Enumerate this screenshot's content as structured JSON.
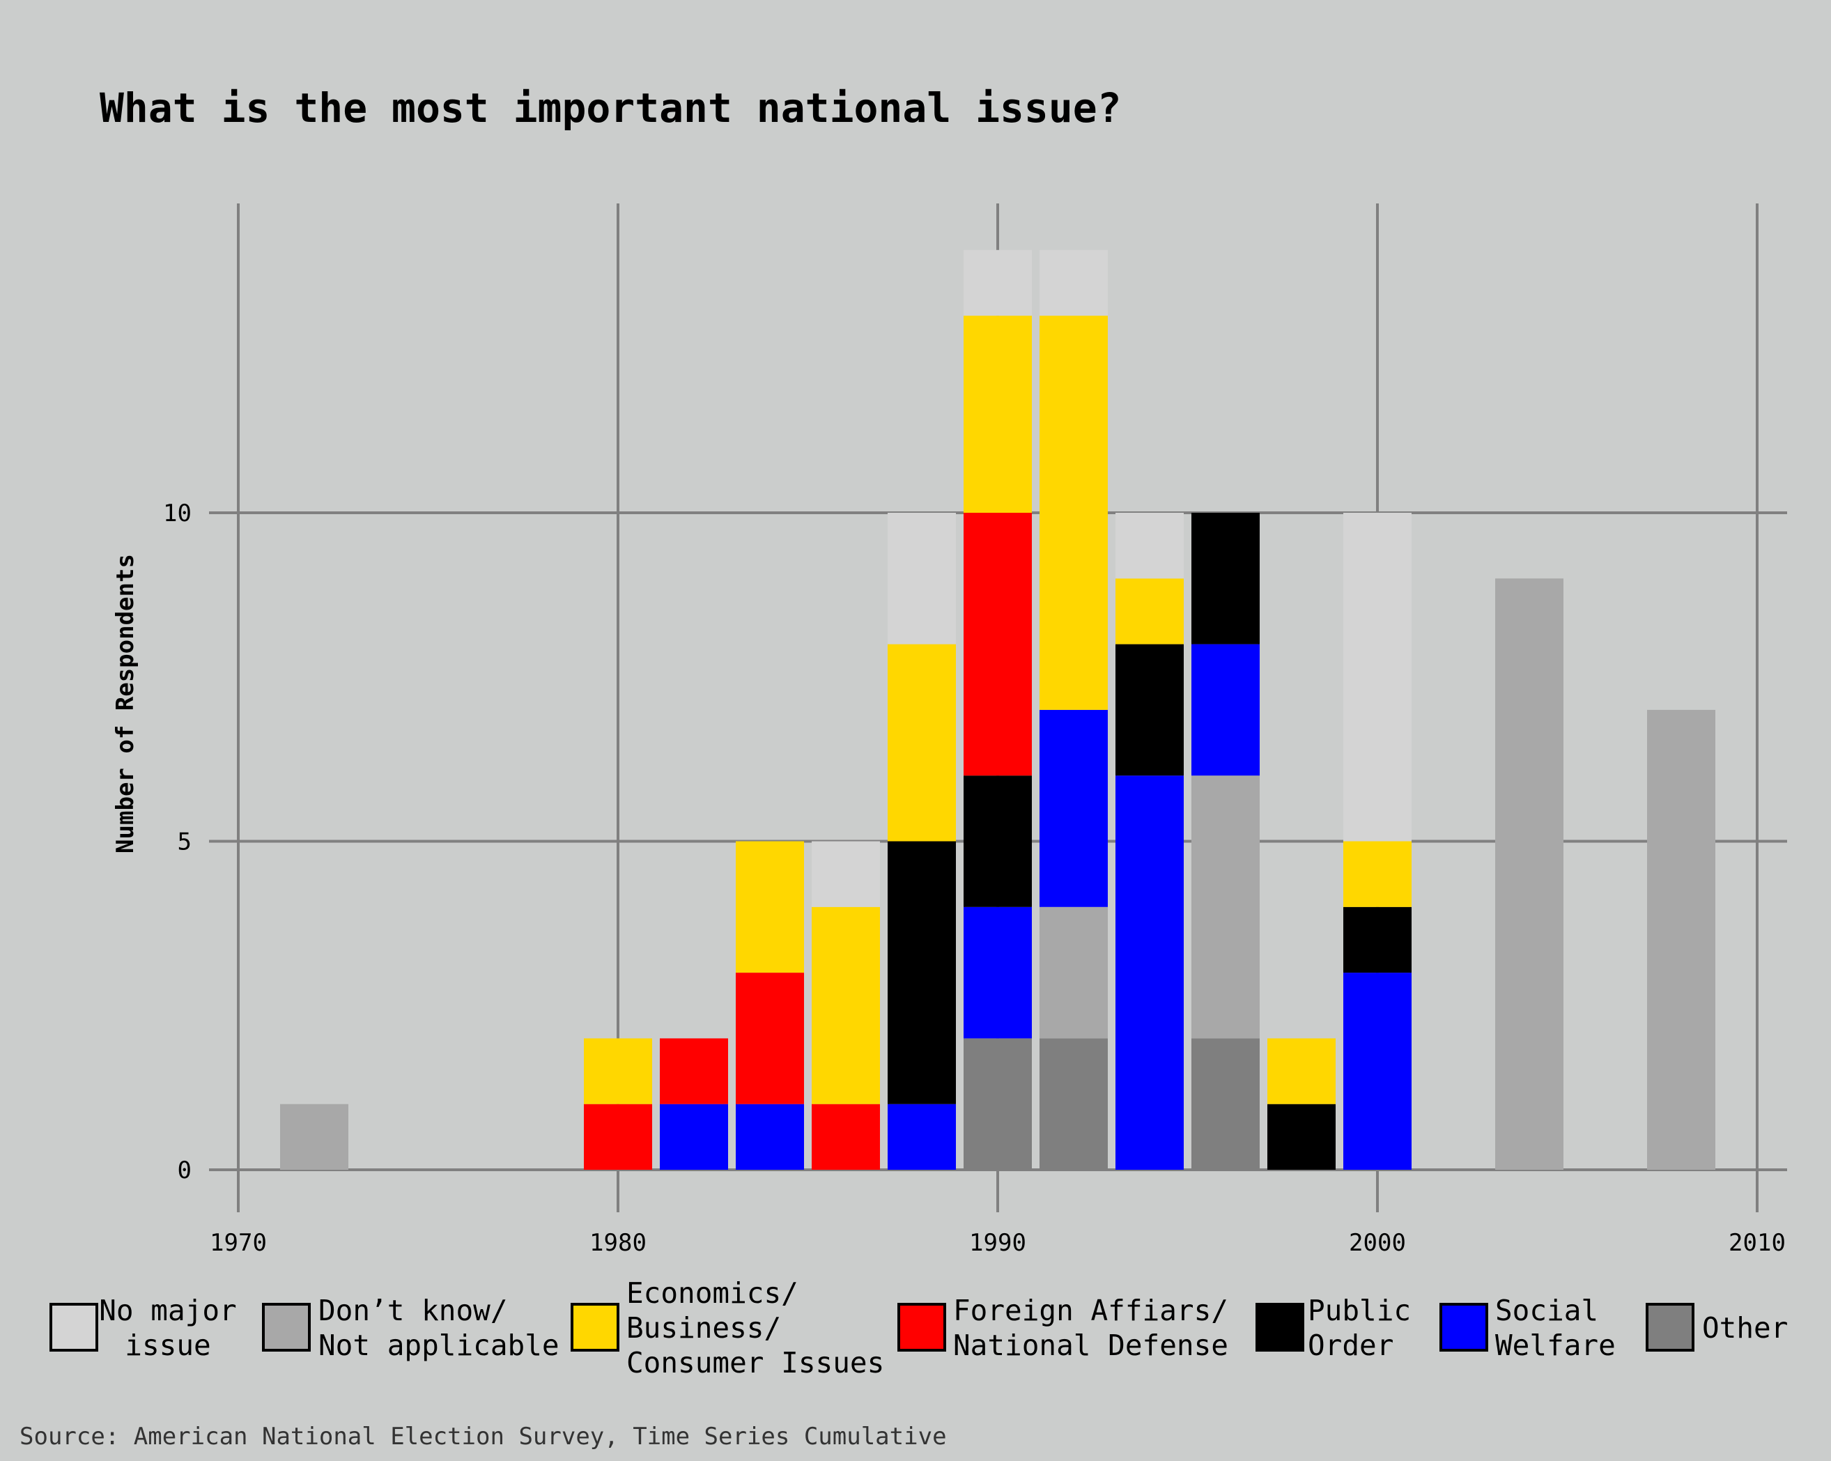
{
  "chart_data": {
    "type": "bar",
    "stacked": true,
    "title": "What is the most important national issue?",
    "xlabel": "",
    "ylabel": "Number of Respondents",
    "xlim": [
      1970,
      2010
    ],
    "ylim": [
      0,
      14
    ],
    "x_ticks": [
      "1970",
      "1980",
      "1990",
      "2000",
      "2010"
    ],
    "y_ticks": [
      "0",
      "5",
      "10"
    ],
    "grid": true,
    "legend_position": "bottom",
    "source": "Source: American National Election Survey, Time Series Cumulative",
    "x": [
      1972,
      1980,
      1982,
      1984,
      1986,
      1988,
      1990,
      1992,
      1994,
      1996,
      1998,
      2000,
      2004,
      2008
    ],
    "series": [
      {
        "name": "Other",
        "legend_label": [
          "Other"
        ],
        "color": "#7f7f7f",
        "values": [
          0,
          0,
          0,
          0,
          0,
          0,
          2,
          2,
          0,
          2,
          0,
          0,
          0,
          0
        ]
      },
      {
        "name": "Don’t know/ Not applicable",
        "legend_label": [
          "Don’t know/",
          "Not applicable"
        ],
        "color": "#a8a8a8",
        "values": [
          1,
          0,
          0,
          0,
          0,
          0,
          0,
          2,
          0,
          4,
          0,
          0,
          9,
          7
        ]
      },
      {
        "name": "Social Welfare",
        "legend_label": [
          "Social",
          "Welfare"
        ],
        "color": "#0000ff",
        "values": [
          0,
          0,
          1,
          1,
          0,
          1,
          2,
          3,
          6,
          2,
          0,
          3,
          0,
          0
        ]
      },
      {
        "name": "Public Order",
        "legend_label": [
          "Public",
          "Order"
        ],
        "color": "#000000",
        "values": [
          0,
          0,
          0,
          0,
          0,
          4,
          2,
          0,
          2,
          2,
          1,
          1,
          0,
          0
        ]
      },
      {
        "name": "Foreign Affiars/ National Defense",
        "legend_label": [
          "Foreign Affiars/",
          "National Defense"
        ],
        "color": "#ff0000",
        "values": [
          0,
          1,
          1,
          2,
          1,
          0,
          4,
          0,
          0,
          0,
          0,
          0,
          0,
          0
        ]
      },
      {
        "name": "Economics/ Business/ Consumer Issues",
        "legend_label": [
          "Economics/",
          "Business/",
          "Consumer Issues"
        ],
        "color": "#ffd700",
        "values": [
          0,
          1,
          0,
          2,
          3,
          3,
          3,
          6,
          1,
          0,
          1,
          1,
          0,
          0
        ]
      },
      {
        "name": "No major issue",
        "legend_label": [
          "No major",
          "issue"
        ],
        "color": "#d4d4d4",
        "values": [
          0,
          0,
          0,
          0,
          1,
          2,
          1,
          1,
          1,
          0,
          0,
          5,
          0,
          0
        ]
      }
    ],
    "legend_order": [
      "No major issue",
      "Don’t know/ Not applicable",
      "Economics/ Business/ Consumer Issues",
      "Foreign Affiars/ National Defense",
      "Public Order",
      "Social Welfare",
      "Other"
    ]
  }
}
